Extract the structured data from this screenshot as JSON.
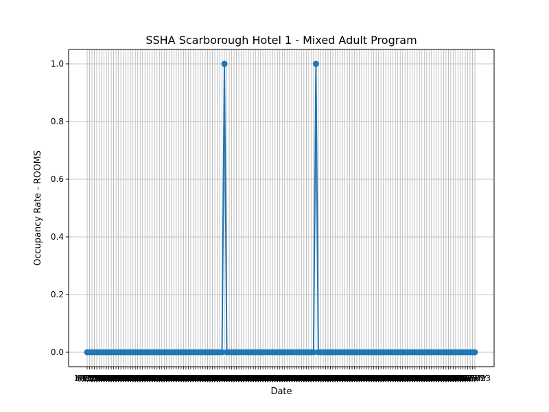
{
  "chart_data": {
    "type": "line",
    "title": "SSHA Scarborough Hotel 1 - Mixed Adult Program",
    "xlabel": "Date",
    "ylabel": "Occupancy Rate - ROOMS",
    "x_count": 162,
    "spike_indices": [
      57,
      95
    ],
    "spike_value": 1.0,
    "base_value": 0.0,
    "ylim": [
      -0.05,
      1.05
    ],
    "yticks": [
      "0.0",
      "0.2",
      "0.4",
      "0.6",
      "0.8",
      "1.0"
    ],
    "grid": true,
    "line_color": "#1f77b4",
    "grid_color": "#b0b0b0",
    "first_xtick_label": "1/",
    "last_xtick_label": "/23"
  }
}
